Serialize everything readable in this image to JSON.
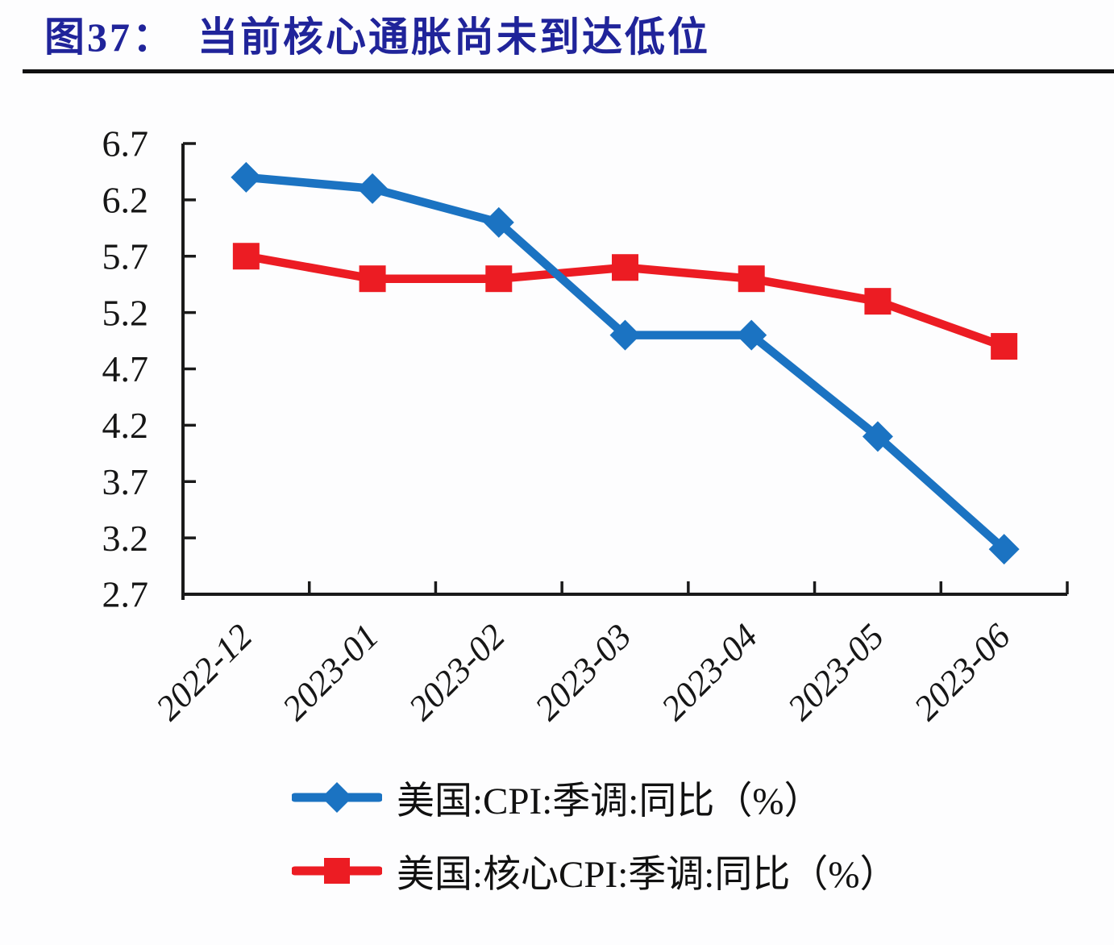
{
  "figure": {
    "title": "图37：　当前核心通胀尚未到达低位"
  },
  "colors": {
    "title": "#20249a",
    "divider": "#101010",
    "axis": "#1a1a1a",
    "text": "#161616",
    "cpi_blue": "#1b73c2",
    "core_cpi_red": "#ec1c23",
    "background": "#fdfdfe"
  },
  "chart_data": {
    "type": "line",
    "title": "当前核心通胀尚未到达低位",
    "xlabel": "",
    "ylabel": "",
    "categories": [
      "2022-12",
      "2023-01",
      "2023-02",
      "2023-03",
      "2023-04",
      "2023-05",
      "2023-06"
    ],
    "series": [
      {
        "name": "美国:CPI:季调:同比（%）",
        "marker": "diamond",
        "color": "#1b73c2",
        "values": [
          6.4,
          6.3,
          6.0,
          5.0,
          5.0,
          4.1,
          3.1
        ]
      },
      {
        "name": "美国:核心CPI:季调:同比（%）",
        "marker": "square",
        "color": "#ec1c23",
        "values": [
          5.7,
          5.5,
          5.5,
          5.6,
          5.5,
          5.3,
          4.9
        ]
      }
    ],
    "ylim": [
      2.7,
      6.7
    ],
    "yticks": [
      2.7,
      3.2,
      3.7,
      4.2,
      4.7,
      5.2,
      5.7,
      6.2,
      6.7
    ],
    "grid": false,
    "legend_position": "bottom-left",
    "tick_style": "inside"
  }
}
